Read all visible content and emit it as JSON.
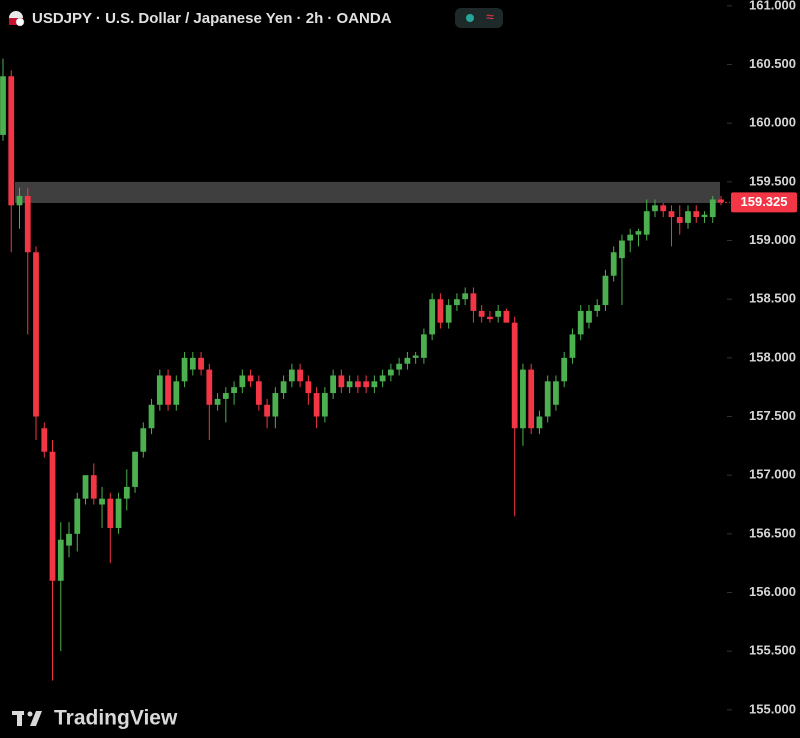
{
  "chart_data": {
    "type": "candlestick",
    "title": "USDJPY · U.S. Dollar / Japanese Yen · 2h · OANDA",
    "watermark": "TradingView",
    "up_color": "#4caf50",
    "down_color": "#f23645",
    "open": [
      159.9,
      160.4,
      159.3,
      159.38,
      158.9,
      157.4,
      157.2,
      156.1,
      156.4,
      156.5,
      156.8,
      157.0,
      156.75,
      156.8,
      156.55,
      156.8,
      156.9,
      157.2,
      157.4,
      157.6,
      157.85,
      157.6,
      157.8,
      157.9,
      158.0,
      157.9,
      157.6,
      157.65,
      157.7,
      157.75,
      157.85,
      157.8,
      157.6,
      157.5,
      157.7,
      157.8,
      157.9,
      157.8,
      157.7,
      157.5,
      157.7,
      157.85,
      157.75,
      157.8,
      157.8,
      157.75,
      157.8,
      157.85,
      157.9,
      157.95,
      158.0,
      158.0,
      158.2,
      158.5,
      158.3,
      158.45,
      158.5,
      158.55,
      158.4,
      158.35,
      158.35,
      158.4,
      158.3,
      157.4,
      157.9,
      157.4,
      157.5,
      157.6,
      157.8,
      158.0,
      158.2,
      158.3,
      158.4,
      158.45,
      158.7,
      158.85,
      159.0,
      159.05,
      159.05,
      159.25,
      159.3,
      159.25,
      159.2,
      159.15,
      159.25,
      159.2,
      159.2,
      159.35
    ],
    "high": [
      160.55,
      160.45,
      159.45,
      159.45,
      158.95,
      157.45,
      157.3,
      156.6,
      156.6,
      156.85,
      157.0,
      157.1,
      156.9,
      156.85,
      156.85,
      157.05,
      157.2,
      157.45,
      157.65,
      157.9,
      157.9,
      157.85,
      158.05,
      158.05,
      158.05,
      157.95,
      157.7,
      157.75,
      157.8,
      157.9,
      157.9,
      157.85,
      157.65,
      157.75,
      157.85,
      157.95,
      157.95,
      157.85,
      157.75,
      157.75,
      157.9,
      157.9,
      157.85,
      157.85,
      157.85,
      157.85,
      157.9,
      157.95,
      158.0,
      158.05,
      158.05,
      158.25,
      158.55,
      158.55,
      158.5,
      158.55,
      158.6,
      158.6,
      158.45,
      158.4,
      158.45,
      158.42,
      158.35,
      157.95,
      157.95,
      157.55,
      157.85,
      157.85,
      158.05,
      158.25,
      158.45,
      158.45,
      158.5,
      158.75,
      158.95,
      159.05,
      159.1,
      159.1,
      159.35,
      159.35,
      159.32,
      159.3,
      159.3,
      159.3,
      159.3,
      159.25,
      159.38,
      159.38
    ],
    "low": [
      159.85,
      158.9,
      159.1,
      158.2,
      157.3,
      157.15,
      155.25,
      155.5,
      156.3,
      156.35,
      156.75,
      156.75,
      156.55,
      156.25,
      156.5,
      156.7,
      156.85,
      157.15,
      157.35,
      157.55,
      157.55,
      157.55,
      157.75,
      157.85,
      157.85,
      157.3,
      157.55,
      157.45,
      157.6,
      157.7,
      157.75,
      157.55,
      157.4,
      157.4,
      157.65,
      157.75,
      157.75,
      157.6,
      157.4,
      157.45,
      157.65,
      157.7,
      157.7,
      157.7,
      157.7,
      157.7,
      157.75,
      157.8,
      157.85,
      157.9,
      157.95,
      157.95,
      158.15,
      158.25,
      158.25,
      158.4,
      158.45,
      158.3,
      158.3,
      158.3,
      158.3,
      158.3,
      156.65,
      157.25,
      157.35,
      157.35,
      157.45,
      157.55,
      157.75,
      157.95,
      158.15,
      158.25,
      158.35,
      158.4,
      158.65,
      158.45,
      158.9,
      158.95,
      159.0,
      159.2,
      159.2,
      158.95,
      159.05,
      159.1,
      159.15,
      159.15,
      159.15,
      159.3
    ],
    "close": [
      160.4,
      159.3,
      159.38,
      158.9,
      157.5,
      157.2,
      156.1,
      156.45,
      156.5,
      156.8,
      157.0,
      156.8,
      156.8,
      156.55,
      156.8,
      156.9,
      157.2,
      157.4,
      157.6,
      157.85,
      157.6,
      157.8,
      158.0,
      158.0,
      157.9,
      157.6,
      157.65,
      157.7,
      157.75,
      157.85,
      157.8,
      157.6,
      157.5,
      157.7,
      157.8,
      157.9,
      157.8,
      157.7,
      157.5,
      157.7,
      157.85,
      157.75,
      157.8,
      157.75,
      157.75,
      157.8,
      157.85,
      157.9,
      157.95,
      158.0,
      158.02,
      158.2,
      158.5,
      158.3,
      158.45,
      158.5,
      158.55,
      158.4,
      158.35,
      158.33,
      158.4,
      158.3,
      157.4,
      157.9,
      157.4,
      157.5,
      157.8,
      157.8,
      158.0,
      158.2,
      158.4,
      158.4,
      158.45,
      158.7,
      158.9,
      159.0,
      159.05,
      159.08,
      159.25,
      159.3,
      159.25,
      159.2,
      159.15,
      159.25,
      159.2,
      159.22,
      159.35,
      159.325
    ],
    "zone": [
      159.32,
      159.5
    ],
    "last_price": 159.325,
    "ylim": [
      154.76,
      161.05
    ],
    "yticks": [
      {
        "value": 155,
        "label": "155.000"
      },
      {
        "value": 155.5,
        "label": "155.500"
      },
      {
        "value": 156,
        "label": "156.000"
      },
      {
        "value": 156.5,
        "label": "156.500"
      },
      {
        "value": 157,
        "label": "157.000"
      },
      {
        "value": 157.5,
        "label": "157.500"
      },
      {
        "value": 158,
        "label": "158.000"
      },
      {
        "value": 158.5,
        "label": "158.500"
      },
      {
        "value": 159,
        "label": "159.000"
      },
      {
        "value": 159.5,
        "label": "159.500"
      },
      {
        "value": 160,
        "label": "160.000"
      },
      {
        "value": 160.5,
        "label": "160.500"
      },
      {
        "value": 161,
        "label": "161.000"
      }
    ]
  }
}
